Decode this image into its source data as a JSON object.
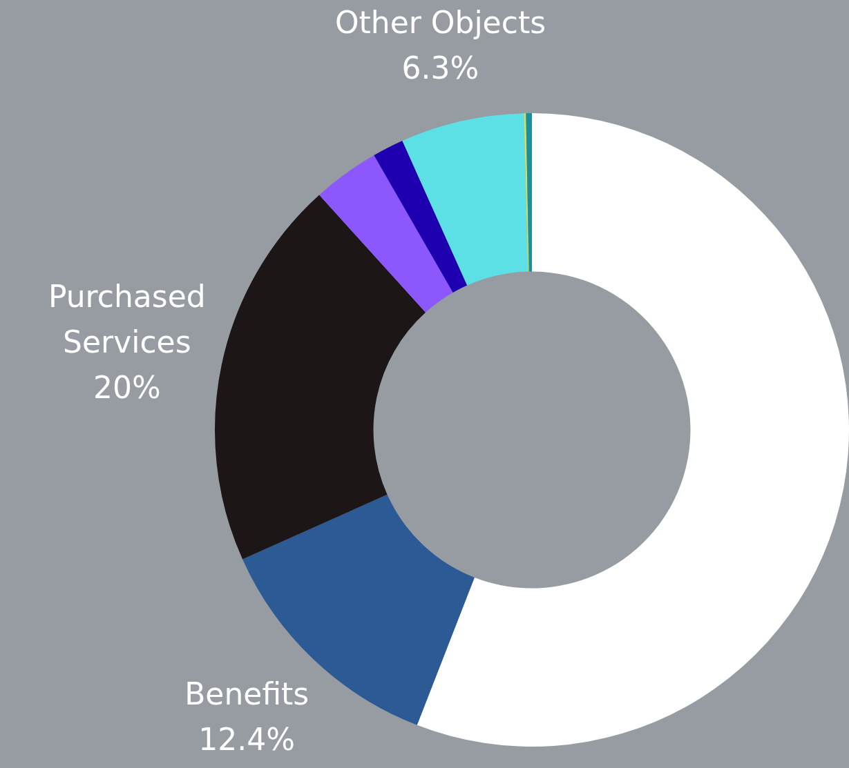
{
  "chart_data": {
    "type": "donut",
    "categories": [
      null,
      "Benefits",
      "Purchased Services",
      null,
      null,
      "Other Objects",
      null,
      null
    ],
    "values": [
      55.9,
      12.4,
      20,
      3.4,
      1.6,
      6.3,
      0.1,
      0.3
    ],
    "colors": [
      "#ffffff",
      "#2b5a94",
      "#1c1617",
      "#8c57fd",
      "#1f00b0",
      "#5ce0e5",
      "#d4e157",
      "#1b8fa0"
    ],
    "value_labels": [
      null,
      "12.4%",
      "20%",
      null,
      null,
      "6.3%",
      null,
      null
    ],
    "legend": false
  }
}
